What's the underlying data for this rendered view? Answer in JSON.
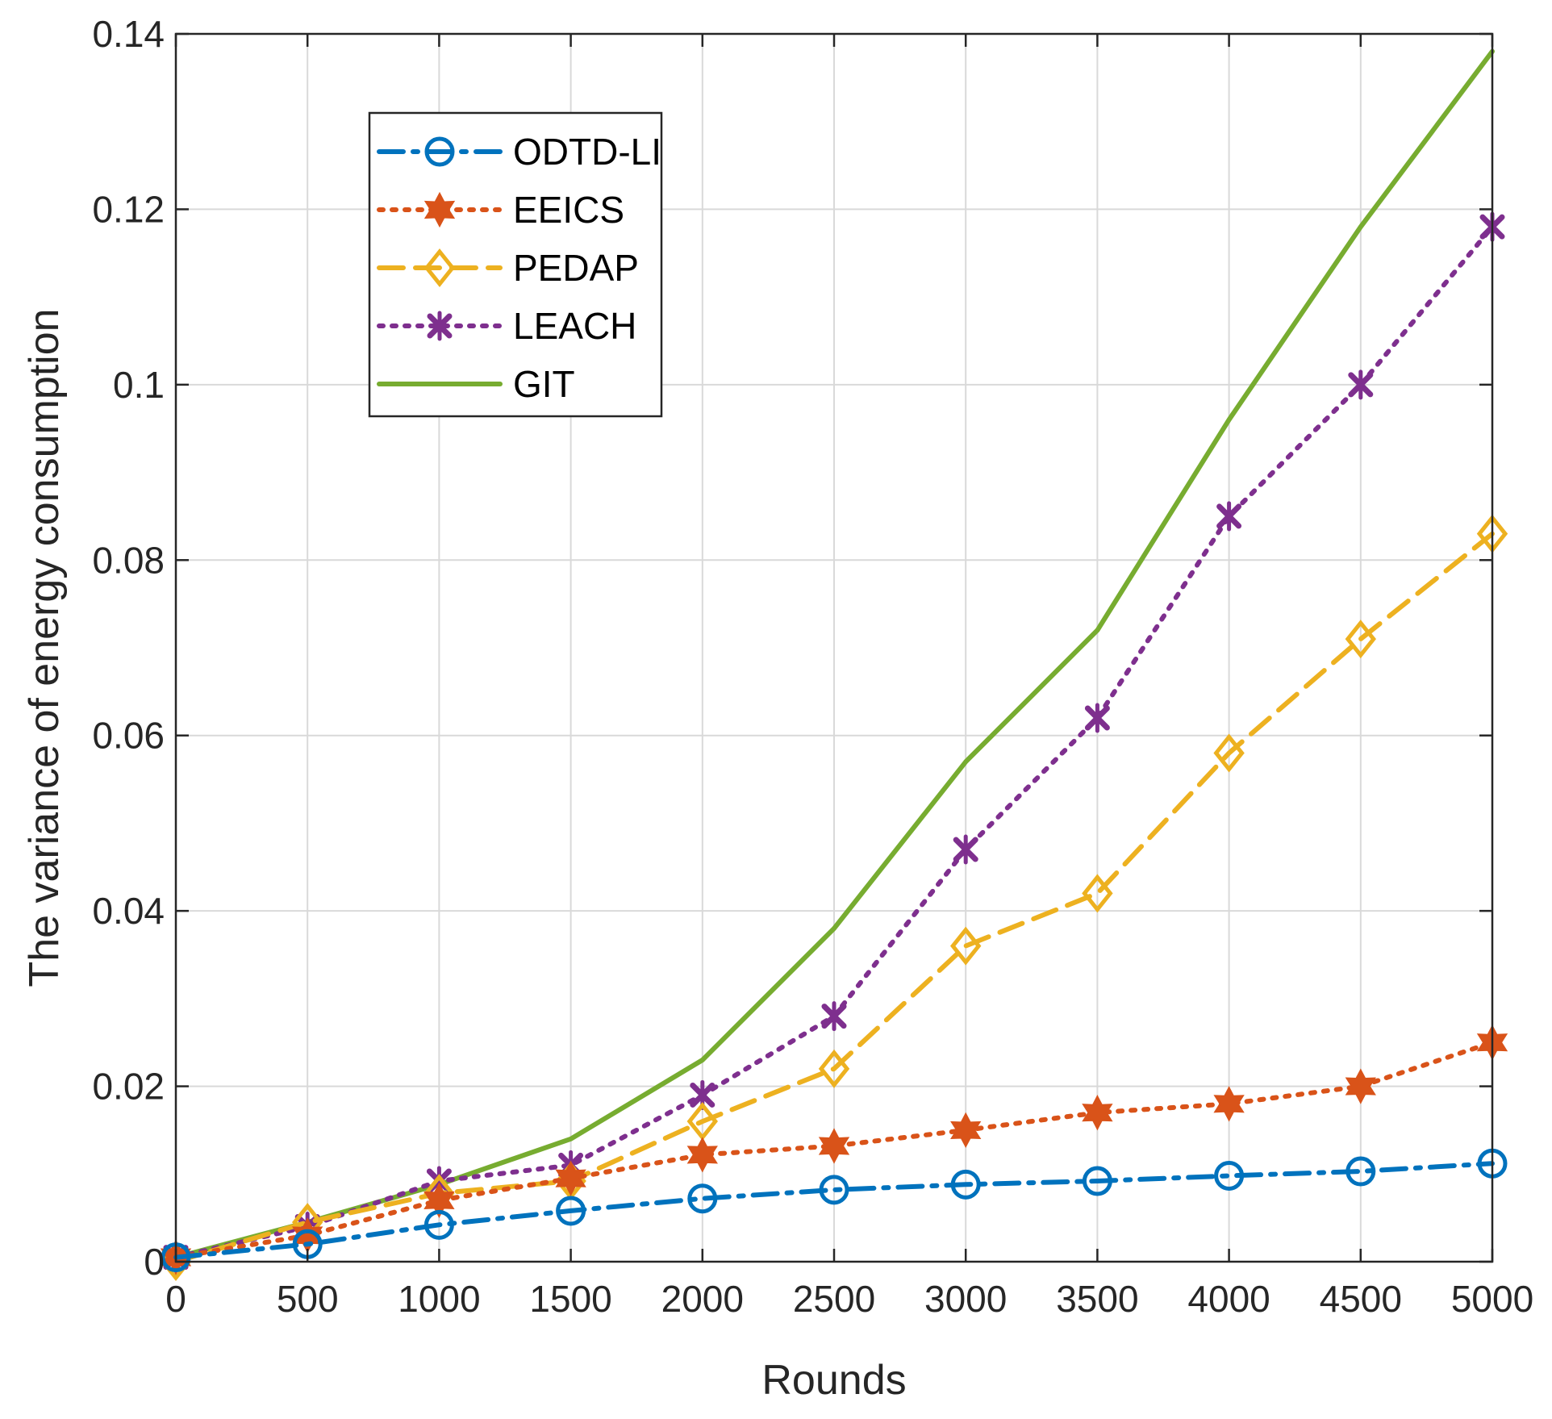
{
  "chart_data": {
    "type": "line",
    "title": "",
    "xlabel": "Rounds",
    "ylabel": "The variance of energy consumption",
    "xlim": [
      0,
      5000
    ],
    "ylim": [
      0,
      0.14
    ],
    "x_ticks": [
      0,
      500,
      1000,
      1500,
      2000,
      2500,
      3000,
      3500,
      4000,
      4500,
      5000
    ],
    "x_tick_labels": [
      "0",
      "500",
      "1000",
      "1500",
      "2000",
      "2500",
      "3000",
      "3500",
      "4000",
      "4500",
      "5000"
    ],
    "y_ticks": [
      0,
      0.02,
      0.04,
      0.06,
      0.08,
      0.1,
      0.12,
      0.14
    ],
    "y_tick_labels": [
      "0",
      "0.02",
      "0.04",
      "0.06",
      "0.08",
      "0.1",
      "0.12",
      "0.14"
    ],
    "grid": true,
    "legend_position": "top-left",
    "x": [
      0,
      500,
      1000,
      1500,
      2000,
      2500,
      3000,
      3500,
      4000,
      4500,
      5000
    ],
    "series": [
      {
        "name": "ODTD-LI",
        "color": "#0072BD",
        "line_style": "dash-dot",
        "marker": "circle",
        "values": [
          0.0005,
          0.002,
          0.0042,
          0.0058,
          0.0072,
          0.0082,
          0.0088,
          0.0092,
          0.0098,
          0.0103,
          0.0112
        ]
      },
      {
        "name": "EEICS",
        "color": "#D95319",
        "line_style": "dotted",
        "marker": "hexagram",
        "values": [
          0.0005,
          0.003,
          0.007,
          0.0095,
          0.0122,
          0.0132,
          0.015,
          0.017,
          0.018,
          0.02,
          0.025
        ]
      },
      {
        "name": "PEDAP",
        "color": "#EDB120",
        "line_style": "dashed",
        "marker": "diamond",
        "values": [
          0.0,
          0.0045,
          0.0078,
          0.0092,
          0.016,
          0.022,
          0.036,
          0.042,
          0.058,
          0.071,
          0.083
        ]
      },
      {
        "name": "LEACH",
        "color": "#7E2F8E",
        "line_style": "dotted",
        "marker": "x-star",
        "values": [
          0.0005,
          0.004,
          0.0092,
          0.011,
          0.019,
          0.028,
          0.047,
          0.062,
          0.085,
          0.1,
          0.118
        ]
      },
      {
        "name": "GIT",
        "color": "#77AC30",
        "line_style": "solid",
        "marker": "none",
        "values": [
          0.0005,
          0.0045,
          0.0088,
          0.014,
          0.023,
          0.038,
          0.057,
          0.072,
          0.096,
          0.118,
          0.138
        ]
      }
    ]
  }
}
